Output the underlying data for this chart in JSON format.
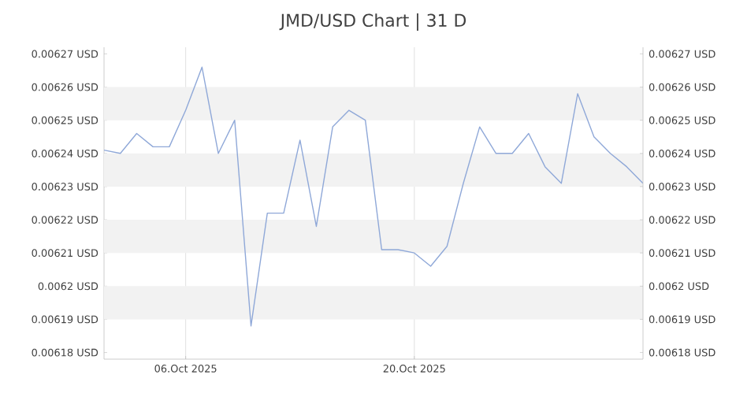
{
  "chart_data": {
    "type": "line",
    "title": "JMD/USD Chart | 31 D",
    "x": [
      "2025-10-01",
      "2025-10-02",
      "2025-10-03",
      "2025-10-04",
      "2025-10-05",
      "2025-10-06",
      "2025-10-07",
      "2025-10-08",
      "2025-10-09",
      "2025-10-10",
      "2025-10-11",
      "2025-10-12",
      "2025-10-13",
      "2025-10-14",
      "2025-10-15",
      "2025-10-16",
      "2025-10-17",
      "2025-10-18",
      "2025-10-19",
      "2025-10-20",
      "2025-10-21",
      "2025-10-22",
      "2025-10-23",
      "2025-10-24",
      "2025-10-25",
      "2025-10-26",
      "2025-10-27",
      "2025-10-28",
      "2025-10-29",
      "2025-10-30",
      "2025-10-31",
      "2025-11-01",
      "2025-11-02",
      "2025-11-03"
    ],
    "series": [
      {
        "color": "#8fa8d8",
        "values": [
          0.006241,
          0.00624,
          0.006246,
          0.006242,
          0.006242,
          0.006253,
          0.006266,
          0.00624,
          0.00625,
          0.006188,
          0.006222,
          0.006222,
          0.006244,
          0.006218,
          0.006248,
          0.006253,
          0.00625,
          0.006211,
          0.006211,
          0.00621,
          0.006206,
          0.006212,
          0.006231,
          0.006248,
          0.00624,
          0.00624,
          0.006246,
          0.006236,
          0.006231,
          0.006258,
          0.006245,
          0.00624,
          0.006236,
          0.006231
        ]
      }
    ],
    "xlim": [
      "2025-10-01",
      "2025-11-03"
    ],
    "xticks": [
      {
        "value": "2025-10-06",
        "label": "06.Oct 2025"
      },
      {
        "value": "2025-10-20",
        "label": "20.Oct 2025"
      }
    ],
    "ylim": [
      0.006178,
      0.006272
    ],
    "yticks": [
      {
        "value": 0.00618,
        "label": "0.00618 USD"
      },
      {
        "value": 0.00619,
        "label": "0.00619 USD"
      },
      {
        "value": 0.0062,
        "label": "0.0062 USD"
      },
      {
        "value": 0.00621,
        "label": "0.00621 USD"
      },
      {
        "value": 0.00622,
        "label": "0.00622 USD"
      },
      {
        "value": 0.00623,
        "label": "0.00623 USD"
      },
      {
        "value": 0.00624,
        "label": "0.00624 USD"
      },
      {
        "value": 0.00625,
        "label": "0.00625 USD"
      },
      {
        "value": 0.00626,
        "label": "0.00626 USD"
      },
      {
        "value": 0.00627,
        "label": "0.00627 USD"
      }
    ],
    "y2lim": [
      0.006178,
      0.006272
    ],
    "y2ticks": [
      {
        "value": 0.00618,
        "label": "0.00618 USD"
      },
      {
        "value": 0.00619,
        "label": "0.00619 USD"
      },
      {
        "value": 0.0062,
        "label": "0.0062 USD"
      },
      {
        "value": 0.00621,
        "label": "0.00621 USD"
      },
      {
        "value": 0.00622,
        "label": "0.00622 USD"
      },
      {
        "value": 0.00623,
        "label": "0.00623 USD"
      },
      {
        "value": 0.00624,
        "label": "0.00624 USD"
      },
      {
        "value": 0.00625,
        "label": "0.00625 USD"
      },
      {
        "value": 0.00626,
        "label": "0.00626 USD"
      },
      {
        "value": 0.00627,
        "label": "0.00627 USD"
      }
    ],
    "grid": true,
    "line_style": "solid"
  }
}
